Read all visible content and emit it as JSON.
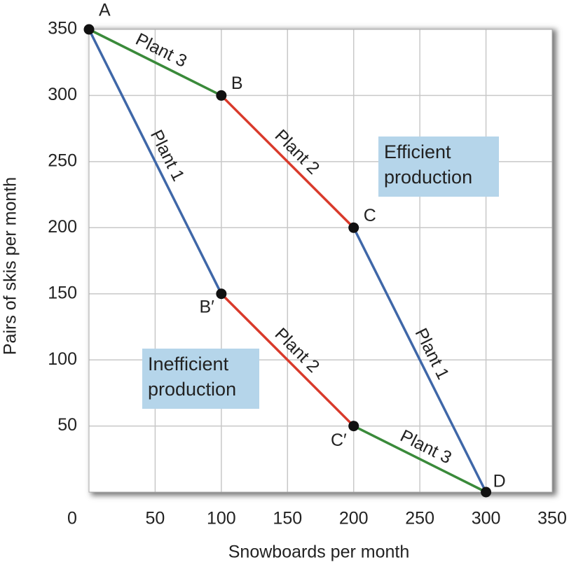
{
  "chart_data": {
    "type": "line",
    "x_label": "Snowboards per month",
    "y_label": "Pairs of skis per month",
    "xlim": [
      0,
      350
    ],
    "ylim": [
      0,
      350
    ],
    "xticks": [
      0,
      50,
      100,
      150,
      200,
      250,
      300,
      350
    ],
    "yticks": [
      50,
      100,
      150,
      200,
      250,
      300,
      350
    ],
    "grid": true,
    "series": [
      {
        "name": "Plant 3",
        "color": "#3a8a3a",
        "x": [
          0,
          100
        ],
        "values": [
          350,
          300
        ]
      },
      {
        "name": "Plant 2",
        "color": "#d93a2b",
        "x": [
          100,
          200
        ],
        "values": [
          300,
          200
        ]
      },
      {
        "name": "Plant 1",
        "color": "#3f67a8",
        "x": [
          200,
          300
        ],
        "values": [
          200,
          0
        ]
      },
      {
        "name": "Plant 1",
        "color": "#3f67a8",
        "x": [
          0,
          100
        ],
        "values": [
          350,
          150
        ]
      },
      {
        "name": "Plant 2",
        "color": "#d93a2b",
        "x": [
          100,
          200
        ],
        "values": [
          150,
          50
        ]
      },
      {
        "name": "Plant 3",
        "color": "#3a8a3a",
        "x": [
          200,
          300
        ],
        "values": [
          50,
          0
        ]
      }
    ],
    "points": [
      {
        "label": "A",
        "x": 0,
        "y": 350
      },
      {
        "label": "B",
        "x": 100,
        "y": 300
      },
      {
        "label": "C",
        "x": 200,
        "y": 200
      },
      {
        "label": "D",
        "x": 300,
        "y": 0
      },
      {
        "label": "B′",
        "x": 100,
        "y": 150
      },
      {
        "label": "C′",
        "x": 200,
        "y": 50
      }
    ],
    "annotations": [
      {
        "lines": [
          "Efficient",
          "production"
        ]
      },
      {
        "lines": [
          "Inefficient",
          "production"
        ]
      }
    ]
  }
}
